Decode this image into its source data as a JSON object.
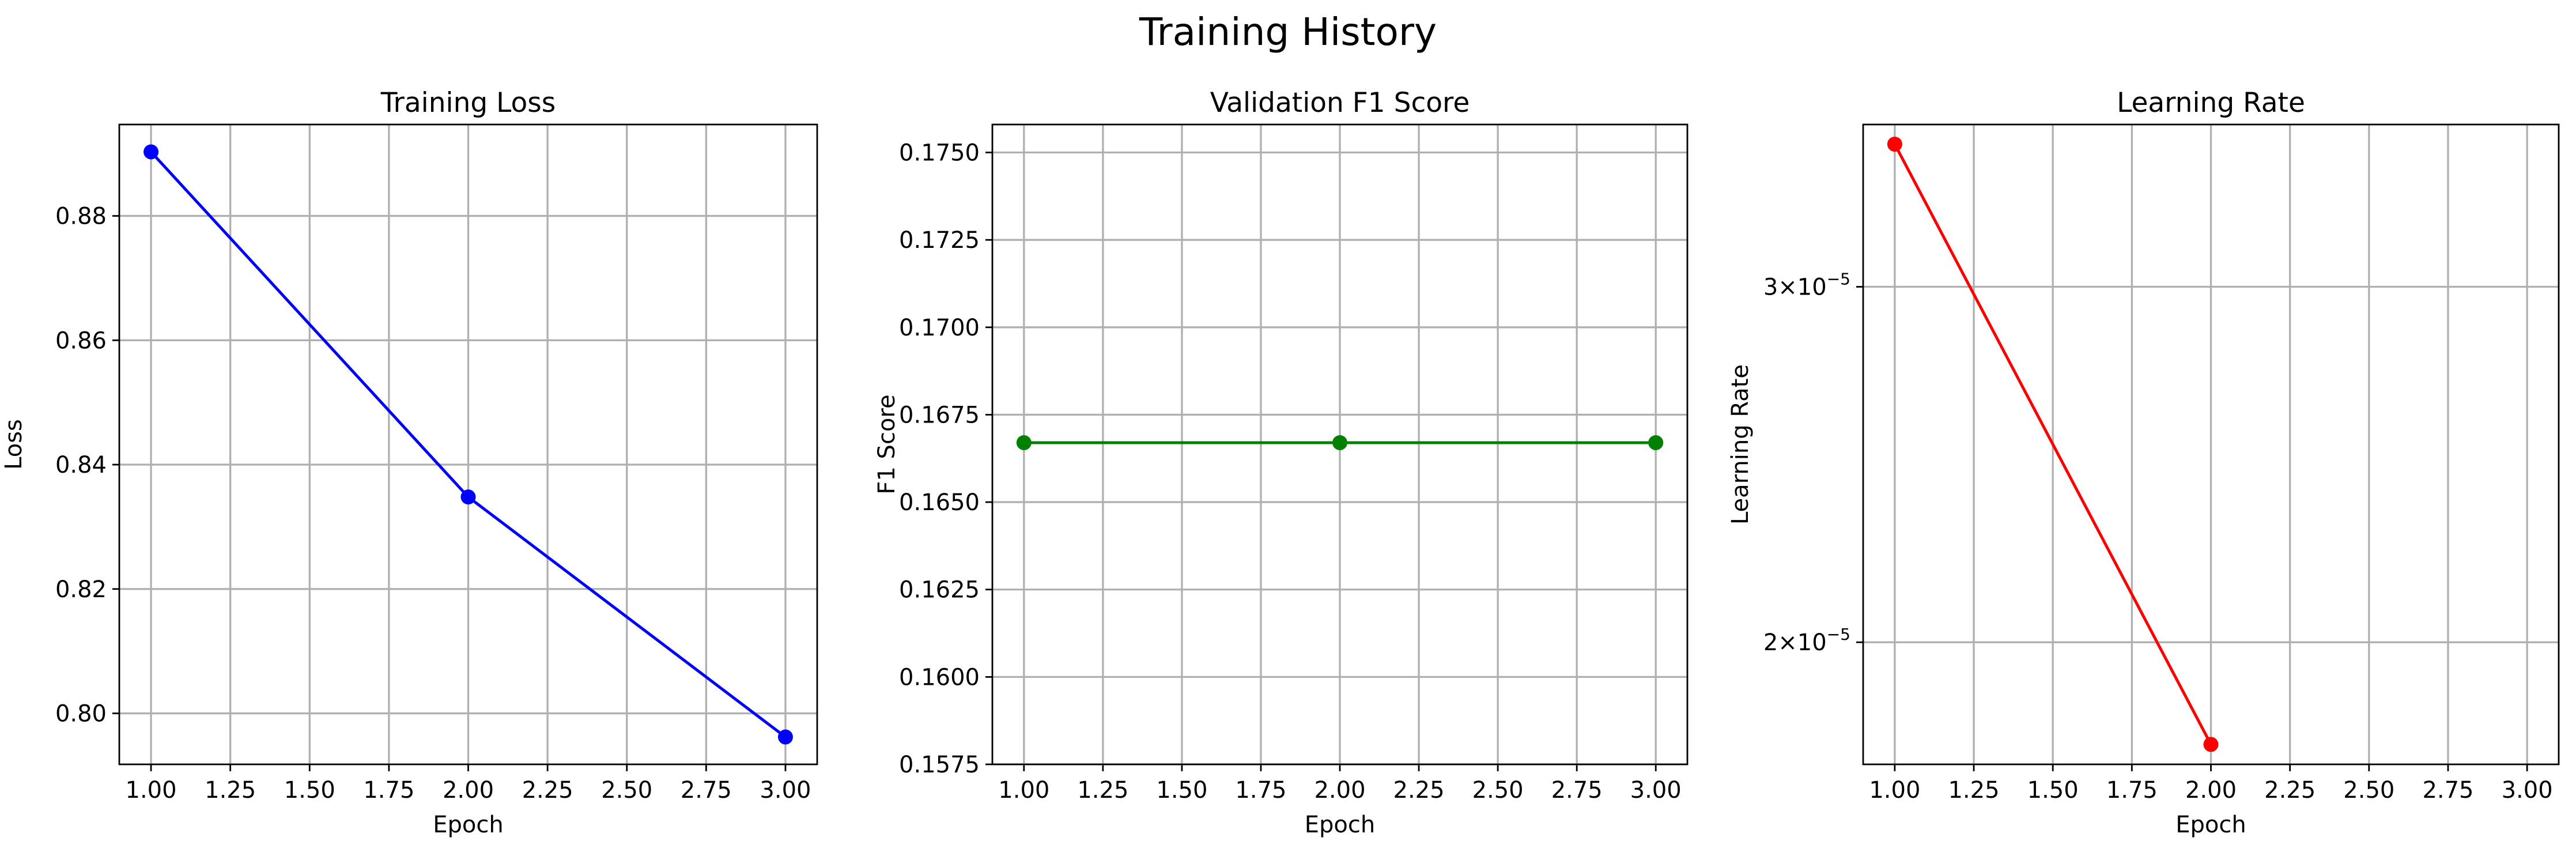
{
  "title": "Training History",
  "chart_data": [
    {
      "type": "line",
      "title": "Training Loss",
      "xlabel": "Epoch",
      "ylabel": "Loss",
      "grid": true,
      "xlim": [
        0.9,
        3.1
      ],
      "ylim": [
        0.7918,
        0.8947
      ],
      "xticks": [
        "1.00",
        "1.25",
        "1.50",
        "1.75",
        "2.00",
        "2.25",
        "2.50",
        "2.75",
        "3.00"
      ],
      "yticks": [
        "0.80",
        "0.82",
        "0.84",
        "0.86",
        "0.88"
      ],
      "series": [
        {
          "color": "#0000ff",
          "x": [
            1,
            2,
            3
          ],
          "y": [
            0.8903,
            0.8348,
            0.7962
          ]
        }
      ]
    },
    {
      "type": "line",
      "title": "Validation F1 Score",
      "xlabel": "Epoch",
      "ylabel": "F1 Score",
      "grid": true,
      "xlim": [
        0.9,
        3.1
      ],
      "ylim": [
        0.1575,
        0.1758
      ],
      "xticks": [
        "1.00",
        "1.25",
        "1.50",
        "1.75",
        "2.00",
        "2.25",
        "2.50",
        "2.75",
        "3.00"
      ],
      "yticks": [
        "0.1575",
        "0.1600",
        "0.1625",
        "0.1650",
        "0.1675",
        "0.1700",
        "0.1725",
        "0.1750"
      ],
      "series": [
        {
          "color": "#008000",
          "x": [
            1,
            2,
            3
          ],
          "y": [
            0.1667,
            0.1667,
            0.1667
          ]
        }
      ]
    },
    {
      "type": "line",
      "title": "Learning Rate",
      "xlabel": "Epoch",
      "ylabel": "Learning Rate",
      "grid": true,
      "yscale": "log",
      "xlim": [
        0.9,
        3.1
      ],
      "ylim": [
        1.74e-05,
        3.61e-05
      ],
      "xticks": [
        "1.00",
        "1.25",
        "1.50",
        "1.75",
        "2.00",
        "2.25",
        "2.50",
        "2.75",
        "3.00"
      ],
      "yticks": [
        {
          "value": 3e-05,
          "base": "3",
          "exp": "−5"
        },
        {
          "value": 2e-05,
          "base": "2",
          "exp": "−5"
        }
      ],
      "series": [
        {
          "color": "#ff0000",
          "x": [
            1,
            2
          ],
          "y": [
            3.53e-05,
            1.78e-05
          ]
        }
      ]
    }
  ]
}
